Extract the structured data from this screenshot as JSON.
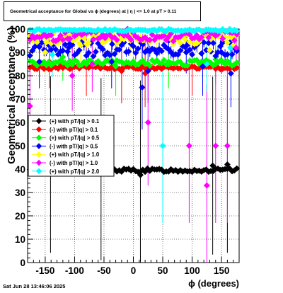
{
  "chart_data": {
    "type": "scatter",
    "title": "Geometrical acceptance for Global vs ϕ (degrees) at | η | <= 1.0 at pT > 0.11",
    "xlabel": "ϕ (degrees)",
    "ylabel": "Geometrical acceptance (%)",
    "xlim": [
      -180,
      180
    ],
    "ylim": [
      0,
      100
    ],
    "xticks": [
      "-150",
      "-100",
      "-50",
      "0",
      "50",
      "100",
      "150"
    ],
    "xtick_values": [
      -150,
      -100,
      -50,
      0,
      50,
      100,
      150
    ],
    "yticks": [
      "0",
      "10",
      "20",
      "30",
      "40",
      "50",
      "60",
      "70",
      "80",
      "90",
      "100"
    ],
    "ytick_values": [
      0,
      10,
      20,
      30,
      40,
      50,
      60,
      70,
      80,
      90,
      100
    ],
    "grid": true,
    "legend_position": "left",
    "series": [
      {
        "name": "(+) with pT/|q| > 0.1",
        "color": "#000000",
        "base": 39.5,
        "jitter": 0.8,
        "outliers": [
          [
            -141,
            42
          ],
          [
            -55,
            40
          ],
          [
            12,
            37.5
          ],
          [
            135,
            41.5
          ],
          [
            160,
            42
          ]
        ]
      },
      {
        "name": "(-) with pT/|q| > 0.1",
        "color": "#ff0000",
        "base": 83.5,
        "jitter": 0.7,
        "outliers": [
          [
            -143,
            86
          ],
          [
            -80,
            84
          ],
          [
            -20,
            82
          ],
          [
            20,
            81
          ],
          [
            100,
            84
          ]
        ]
      },
      {
        "name": "(+) with pT/|q| > 0.5",
        "color": "#00ff00",
        "base": 85.5,
        "jitter": 1.2,
        "outliers": [
          [
            -120,
            88
          ],
          [
            -30,
            84
          ],
          [
            60,
            86
          ],
          [
            140,
            87
          ]
        ]
      },
      {
        "name": "(-) with pT/|q| > 0.5",
        "color": "#0000ff",
        "base": 91.5,
        "jitter": 3.2,
        "outliers": [
          [
            -160,
            86
          ],
          [
            -110,
            92
          ],
          [
            -37,
            86
          ],
          [
            15,
            75
          ],
          [
            25,
            82
          ],
          [
            60,
            95
          ],
          [
            90,
            90
          ],
          [
            118,
            84
          ],
          [
            150,
            90
          ],
          [
            166,
            81
          ]
        ]
      },
      {
        "name": "(+) with pT/|q| > 1.0",
        "color": "#ffff00",
        "base": 96,
        "jitter": 2.5,
        "outliers": [
          [
            -150,
            90
          ],
          [
            -90,
            93
          ],
          [
            -5,
            95
          ],
          [
            40,
            97
          ],
          [
            80,
            94
          ],
          [
            130,
            91
          ],
          [
            170,
            93
          ]
        ]
      },
      {
        "name": "(-) with pT/|q| > 1.0",
        "color": "#ff00ff",
        "base": 97,
        "jitter": 2.2,
        "outliers": [
          [
            -176,
            67
          ],
          [
            -104,
            80
          ],
          [
            -70,
            85
          ],
          [
            -10,
            100
          ],
          [
            25,
            60
          ],
          [
            95,
            50
          ],
          [
            125,
            33
          ],
          [
            140,
            50
          ],
          [
            160,
            50
          ],
          [
            175,
            92
          ]
        ]
      },
      {
        "name": "(+) with pT/|q| > 2.0",
        "color": "#00ffff",
        "base": 99.5,
        "jitter": 0.5,
        "outliers": [
          [
            -138,
            89
          ],
          [
            50,
            50
          ],
          [
            125,
            85
          ],
          [
            165,
            92
          ]
        ]
      }
    ]
  },
  "footer": {
    "date": "Sat Jun 28 13:46:06 2025"
  }
}
